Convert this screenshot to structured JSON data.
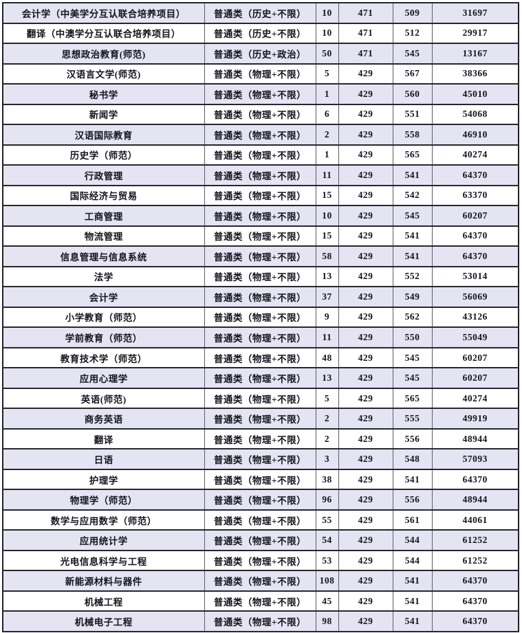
{
  "document": {
    "kind": "admission-scores-table",
    "visible_header": false
  },
  "colors": {
    "row_shade": "#e4e4f2",
    "row_plain": "#ffffff",
    "grid_line": "#26262f",
    "text": "#14141d"
  },
  "chart_data": {
    "type": "table",
    "columns": [
      "major",
      "category",
      "plan_count",
      "control_line",
      "min_score",
      "min_rank"
    ],
    "rows": [
      [
        "会计学（中美学分互认联合培养项目）",
        "普通类（历史+不限）",
        "10",
        "471",
        "509",
        "31697"
      ],
      [
        "翻译（中澳学分互认联合培养项目）",
        "普通类（历史+不限）",
        "10",
        "471",
        "512",
        "29917"
      ],
      [
        "思想政治教育(师范)",
        "普通类（历史+政治）",
        "50",
        "471",
        "545",
        "13167"
      ],
      [
        "汉语言文学(师范)",
        "普通类（物理+不限）",
        "5",
        "429",
        "567",
        "38366"
      ],
      [
        "秘书学",
        "普通类（物理+不限）",
        "1",
        "429",
        "560",
        "45010"
      ],
      [
        "新闻学",
        "普通类（物理+不限）",
        "6",
        "429",
        "551",
        "54068"
      ],
      [
        "汉语国际教育",
        "普通类（物理+不限）",
        "2",
        "429",
        "558",
        "46910"
      ],
      [
        "历史学（师范）",
        "普通类（物理+不限）",
        "1",
        "429",
        "565",
        "40274"
      ],
      [
        "行政管理",
        "普通类（物理+不限）",
        "11",
        "429",
        "541",
        "64370"
      ],
      [
        "国际经济与贸易",
        "普通类（物理+不限）",
        "15",
        "429",
        "542",
        "63370"
      ],
      [
        "工商管理",
        "普通类（物理+不限）",
        "10",
        "429",
        "545",
        "60207"
      ],
      [
        "物流管理",
        "普通类（物理+不限）",
        "15",
        "429",
        "541",
        "64370"
      ],
      [
        "信息管理与信息系统",
        "普通类（物理+不限）",
        "58",
        "429",
        "541",
        "64370"
      ],
      [
        "法学",
        "普通类（物理+不限）",
        "13",
        "429",
        "552",
        "53014"
      ],
      [
        "会计学",
        "普通类（物理+不限）",
        "37",
        "429",
        "549",
        "56069"
      ],
      [
        "小学教育（师范）",
        "普通类（物理+不限）",
        "9",
        "429",
        "562",
        "43126"
      ],
      [
        "学前教育（师范）",
        "普通类（物理+不限）",
        "11",
        "429",
        "550",
        "55049"
      ],
      [
        "教育技术学（师范）",
        "普通类（物理+不限）",
        "48",
        "429",
        "545",
        "60207"
      ],
      [
        "应用心理学",
        "普通类（物理+不限）",
        "13",
        "429",
        "545",
        "60207"
      ],
      [
        "英语(师范)",
        "普通类（物理+不限）",
        "5",
        "429",
        "565",
        "40274"
      ],
      [
        "商务英语",
        "普通类（物理+不限）",
        "2",
        "429",
        "555",
        "49919"
      ],
      [
        "翻译",
        "普通类（物理+不限）",
        "2",
        "429",
        "556",
        "48944"
      ],
      [
        "日语",
        "普通类（物理+不限）",
        "3",
        "429",
        "548",
        "57093"
      ],
      [
        "护理学",
        "普通类（物理+不限）",
        "38",
        "429",
        "541",
        "64370"
      ],
      [
        "物理学（师范）",
        "普通类（物理+不限）",
        "96",
        "429",
        "556",
        "48944"
      ],
      [
        "数学与应用数学（师范）",
        "普通类（物理+不限）",
        "55",
        "429",
        "561",
        "44061"
      ],
      [
        "应用统计学",
        "普通类（物理+不限）",
        "54",
        "429",
        "544",
        "61252"
      ],
      [
        "光电信息科学与工程",
        "普通类（物理+不限）",
        "53",
        "429",
        "544",
        "61252"
      ],
      [
        "新能源材料与器件",
        "普通类（物理+不限）",
        "108",
        "429",
        "541",
        "64370"
      ],
      [
        "机械工程",
        "普通类（物理+不限）",
        "45",
        "429",
        "541",
        "64370"
      ],
      [
        "机械电子工程",
        "普通类（物理+不限）",
        "98",
        "429",
        "541",
        "64370"
      ]
    ]
  }
}
